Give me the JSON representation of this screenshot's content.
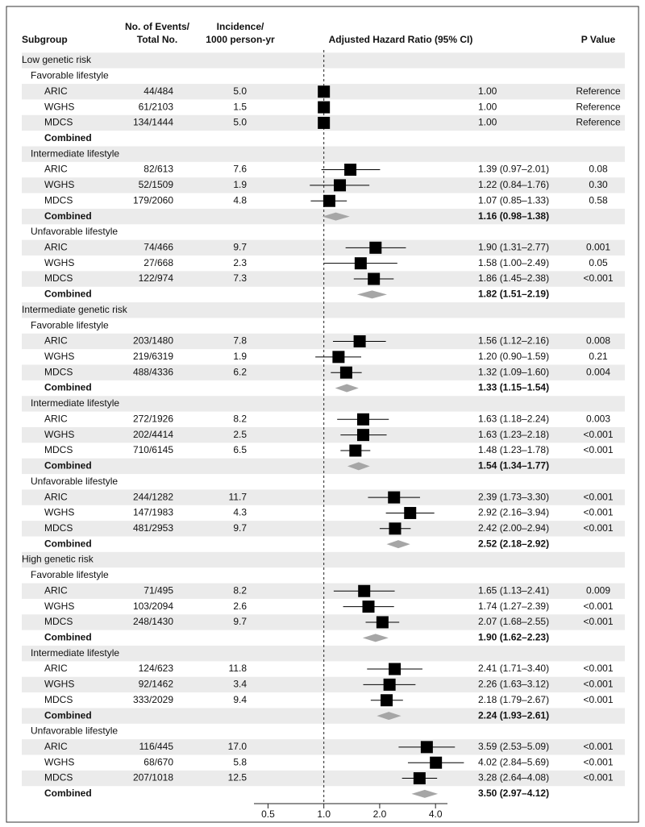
{
  "chart_data": {
    "type": "forest",
    "columns": {
      "subgroup": "Subgroup",
      "events": [
        "No. of Events/",
        "Total No."
      ],
      "incidence": [
        "Incidence/",
        "1000 person-yr"
      ],
      "hr": "Adjusted Hazard Ratio (95% CI)",
      "p": "P Value"
    },
    "log_scale": true,
    "xlim": [
      0.42,
      4.64
    ],
    "xticks": [
      0.5,
      {
        "value": 1,
        "label": "1.0"
      },
      {
        "value": 2,
        "label": "2.0"
      },
      {
        "value": 4,
        "label": "4.0"
      }
    ],
    "ref_line": 1,
    "marker_color": "#000000",
    "diamond_color": "#a6a6a6",
    "stripe_color": "#ebebeb",
    "rows": [
      {
        "label": "Low genetic risk",
        "level": 0
      },
      {
        "label": "Favorable lifestyle",
        "level": 1
      },
      {
        "label": "ARIC",
        "level": 2,
        "events": "44/484",
        "incidence": "5.0",
        "hr": 1.0,
        "hr_label": "1.00",
        "p": "Reference"
      },
      {
        "label": "WGHS",
        "level": 2,
        "events": "61/2103",
        "incidence": "1.5",
        "hr": 1.0,
        "hr_label": "1.00",
        "p": "Reference"
      },
      {
        "label": "MDCS",
        "level": 2,
        "events": "134/1444",
        "incidence": "5.0",
        "hr": 1.0,
        "hr_label": "1.00",
        "p": "Reference"
      },
      {
        "label": "Combined",
        "level": 2,
        "pooled": true
      },
      {
        "label": "Intermediate lifestyle",
        "level": 1
      },
      {
        "label": "ARIC",
        "level": 2,
        "events": "82/613",
        "incidence": "7.6",
        "hr": 1.39,
        "lo": 0.97,
        "hi": 2.01,
        "hr_label": "1.39 (0.97–2.01)",
        "p": "0.08"
      },
      {
        "label": "WGHS",
        "level": 2,
        "events": "52/1509",
        "incidence": "1.9",
        "hr": 1.22,
        "lo": 0.84,
        "hi": 1.76,
        "hr_label": "1.22 (0.84–1.76)",
        "p": "0.30"
      },
      {
        "label": "MDCS",
        "level": 2,
        "events": "179/2060",
        "incidence": "4.8",
        "hr": 1.07,
        "lo": 0.85,
        "hi": 1.33,
        "hr_label": "1.07 (0.85–1.33)",
        "p": "0.58"
      },
      {
        "label": "Combined",
        "level": 2,
        "pooled": true,
        "hr": 1.16,
        "lo": 0.98,
        "hi": 1.38,
        "hr_label": "1.16 (0.98–1.38)"
      },
      {
        "label": "Unfavorable lifestyle",
        "level": 1
      },
      {
        "label": "ARIC",
        "level": 2,
        "events": "74/466",
        "incidence": "9.7",
        "hr": 1.9,
        "lo": 1.31,
        "hi": 2.77,
        "hr_label": "1.90 (1.31–2.77)",
        "p": "0.001"
      },
      {
        "label": "WGHS",
        "level": 2,
        "events": "27/668",
        "incidence": "2.3",
        "hr": 1.58,
        "lo": 1.0,
        "hi": 2.49,
        "hr_label": "1.58 (1.00–2.49)",
        "p": "0.05"
      },
      {
        "label": "MDCS",
        "level": 2,
        "events": "122/974",
        "incidence": "7.3",
        "hr": 1.86,
        "lo": 1.45,
        "hi": 2.38,
        "hr_label": "1.86 (1.45–2.38)",
        "p": "<0.001"
      },
      {
        "label": "Combined",
        "level": 2,
        "pooled": true,
        "hr": 1.82,
        "lo": 1.51,
        "hi": 2.19,
        "hr_label": "1.82 (1.51–2.19)"
      },
      {
        "label": "Intermediate genetic risk",
        "level": 0
      },
      {
        "label": "Favorable lifestyle",
        "level": 1
      },
      {
        "label": "ARIC",
        "level": 2,
        "events": "203/1480",
        "incidence": "7.8",
        "hr": 1.56,
        "lo": 1.12,
        "hi": 2.16,
        "hr_label": "1.56 (1.12–2.16)",
        "p": "0.008"
      },
      {
        "label": "WGHS",
        "level": 2,
        "events": "219/6319",
        "incidence": "1.9",
        "hr": 1.2,
        "lo": 0.9,
        "hi": 1.59,
        "hr_label": "1.20 (0.90–1.59)",
        "p": "0.21"
      },
      {
        "label": "MDCS",
        "level": 2,
        "events": "488/4336",
        "incidence": "6.2",
        "hr": 1.32,
        "lo": 1.09,
        "hi": 1.6,
        "hr_label": "1.32 (1.09–1.60)",
        "p": "0.004"
      },
      {
        "label": "Combined",
        "level": 2,
        "pooled": true,
        "hr": 1.33,
        "lo": 1.15,
        "hi": 1.54,
        "hr_label": "1.33 (1.15–1.54)"
      },
      {
        "label": "Intermediate lifestyle",
        "level": 1
      },
      {
        "label": "ARIC",
        "level": 2,
        "events": "272/1926",
        "incidence": "8.2",
        "hr": 1.63,
        "lo": 1.18,
        "hi": 2.24,
        "hr_label": "1.63 (1.18–2.24)",
        "p": "0.003"
      },
      {
        "label": "WGHS",
        "level": 2,
        "events": "202/4414",
        "incidence": "2.5",
        "hr": 1.63,
        "lo": 1.23,
        "hi": 2.18,
        "hr_label": "1.63 (1.23–2.18)",
        "p": "<0.001"
      },
      {
        "label": "MDCS",
        "level": 2,
        "events": "710/6145",
        "incidence": "6.5",
        "hr": 1.48,
        "lo": 1.23,
        "hi": 1.78,
        "hr_label": "1.48 (1.23–1.78)",
        "p": "<0.001"
      },
      {
        "label": "Combined",
        "level": 2,
        "pooled": true,
        "hr": 1.54,
        "lo": 1.34,
        "hi": 1.77,
        "hr_label": "1.54 (1.34–1.77)"
      },
      {
        "label": "Unfavorable lifestyle",
        "level": 1
      },
      {
        "label": "ARIC",
        "level": 2,
        "events": "244/1282",
        "incidence": "11.7",
        "hr": 2.39,
        "lo": 1.73,
        "hi": 3.3,
        "hr_label": "2.39 (1.73–3.30)",
        "p": "<0.001"
      },
      {
        "label": "WGHS",
        "level": 2,
        "events": "147/1983",
        "incidence": "4.3",
        "hr": 2.92,
        "lo": 2.16,
        "hi": 3.94,
        "hr_label": "2.92 (2.16–3.94)",
        "p": "<0.001"
      },
      {
        "label": "MDCS",
        "level": 2,
        "events": "481/2953",
        "incidence": "9.7",
        "hr": 2.42,
        "lo": 2.0,
        "hi": 2.94,
        "hr_label": "2.42 (2.00–2.94)",
        "p": "<0.001"
      },
      {
        "label": "Combined",
        "level": 2,
        "pooled": true,
        "hr": 2.52,
        "lo": 2.18,
        "hi": 2.92,
        "hr_label": "2.52 (2.18–2.92)"
      },
      {
        "label": "High genetic risk",
        "level": 0
      },
      {
        "label": "Favorable lifestyle",
        "level": 1
      },
      {
        "label": "ARIC",
        "level": 2,
        "events": "71/495",
        "incidence": "8.2",
        "hr": 1.65,
        "lo": 1.13,
        "hi": 2.41,
        "hr_label": "1.65 (1.13–2.41)",
        "p": "0.009"
      },
      {
        "label": "WGHS",
        "level": 2,
        "events": "103/2094",
        "incidence": "2.6",
        "hr": 1.74,
        "lo": 1.27,
        "hi": 2.39,
        "hr_label": "1.74 (1.27–2.39)",
        "p": "<0.001"
      },
      {
        "label": "MDCS",
        "level": 2,
        "events": "248/1430",
        "incidence": "9.7",
        "hr": 2.07,
        "lo": 1.68,
        "hi": 2.55,
        "hr_label": "2.07 (1.68–2.55)",
        "p": "<0.001"
      },
      {
        "label": "Combined",
        "level": 2,
        "pooled": true,
        "hr": 1.9,
        "lo": 1.62,
        "hi": 2.23,
        "hr_label": "1.90 (1.62–2.23)"
      },
      {
        "label": "Intermediate lifestyle",
        "level": 1
      },
      {
        "label": "ARIC",
        "level": 2,
        "events": "124/623",
        "incidence": "11.8",
        "hr": 2.41,
        "lo": 1.71,
        "hi": 3.4,
        "hr_label": "2.41 (1.71–3.40)",
        "p": "<0.001"
      },
      {
        "label": "WGHS",
        "level": 2,
        "events": "92/1462",
        "incidence": "3.4",
        "hr": 2.26,
        "lo": 1.63,
        "hi": 3.12,
        "hr_label": "2.26 (1.63–3.12)",
        "p": "<0.001"
      },
      {
        "label": "MDCS",
        "level": 2,
        "events": "333/2029",
        "incidence": "9.4",
        "hr": 2.18,
        "lo": 1.79,
        "hi": 2.67,
        "hr_label": "2.18 (1.79–2.67)",
        "p": "<0.001"
      },
      {
        "label": "Combined",
        "level": 2,
        "pooled": true,
        "hr": 2.24,
        "lo": 1.93,
        "hi": 2.61,
        "hr_label": "2.24 (1.93–2.61)"
      },
      {
        "label": "Unfavorable lifestyle",
        "level": 1
      },
      {
        "label": "ARIC",
        "level": 2,
        "events": "116/445",
        "incidence": "17.0",
        "hr": 3.59,
        "lo": 2.53,
        "hi": 5.09,
        "hr_label": "3.59 (2.53–5.09)",
        "p": "<0.001"
      },
      {
        "label": "WGHS",
        "level": 2,
        "events": "68/670",
        "incidence": "5.8",
        "hr": 4.02,
        "lo": 2.84,
        "hi": 5.69,
        "hr_label": "4.02 (2.84–5.69)",
        "p": "<0.001"
      },
      {
        "label": "MDCS",
        "level": 2,
        "events": "207/1018",
        "incidence": "12.5",
        "hr": 3.28,
        "lo": 2.64,
        "hi": 4.08,
        "hr_label": "3.28 (2.64–4.08)",
        "p": "<0.001"
      },
      {
        "label": "Combined",
        "level": 2,
        "pooled": true,
        "hr": 3.5,
        "lo": 2.97,
        "hi": 4.12,
        "hr_label": "3.50 (2.97–4.12)"
      }
    ]
  }
}
